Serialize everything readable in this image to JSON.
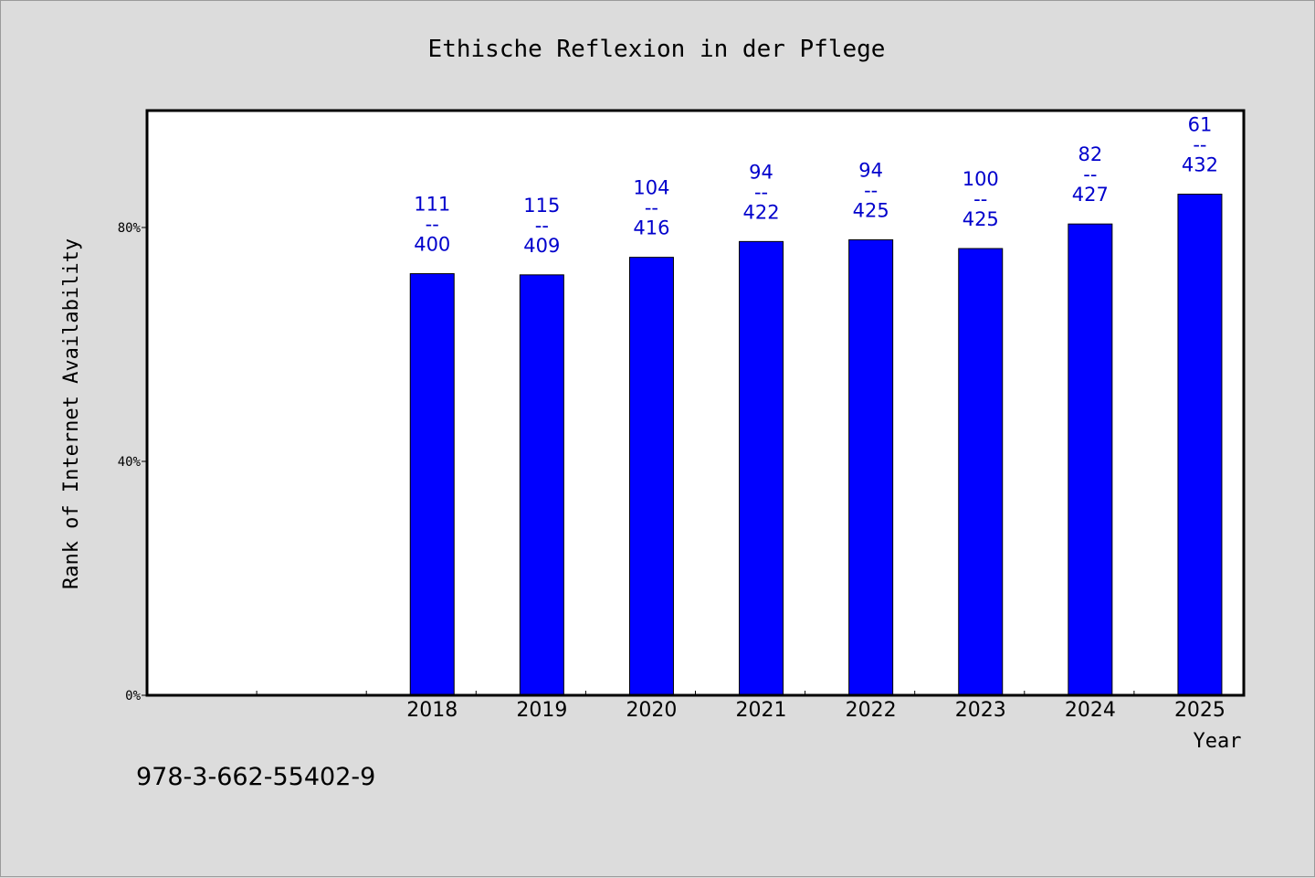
{
  "isbn": "978-3-662-55402-9",
  "chart_data": {
    "type": "bar",
    "title": "Ethische Reflexion in der Pflege",
    "xlabel": "Year",
    "ylabel": "Rank of Internet Availability",
    "categories": [
      "",
      "",
      "2018",
      "2019",
      "2020",
      "2021",
      "2022",
      "2023",
      "2024",
      "2025"
    ],
    "values": [
      null,
      null,
      72.1,
      71.9,
      74.9,
      77.6,
      77.9,
      76.4,
      80.6,
      85.7
    ],
    "labels_top": [
      "",
      "",
      "111",
      "115",
      "104",
      "94",
      "94",
      "100",
      "82",
      "61"
    ],
    "labels_sep": "--",
    "labels_bottom": [
      "",
      "",
      "400",
      "409",
      "416",
      "422",
      "425",
      "425",
      "427",
      "432"
    ],
    "yticks": [
      0,
      40,
      80
    ],
    "ytick_labels": [
      "0%",
      "40%",
      "80%"
    ],
    "ylim": [
      0,
      100
    ],
    "bar_color": "#0000ff",
    "label_color": "#0000cc",
    "grid": false,
    "legend": "none"
  }
}
